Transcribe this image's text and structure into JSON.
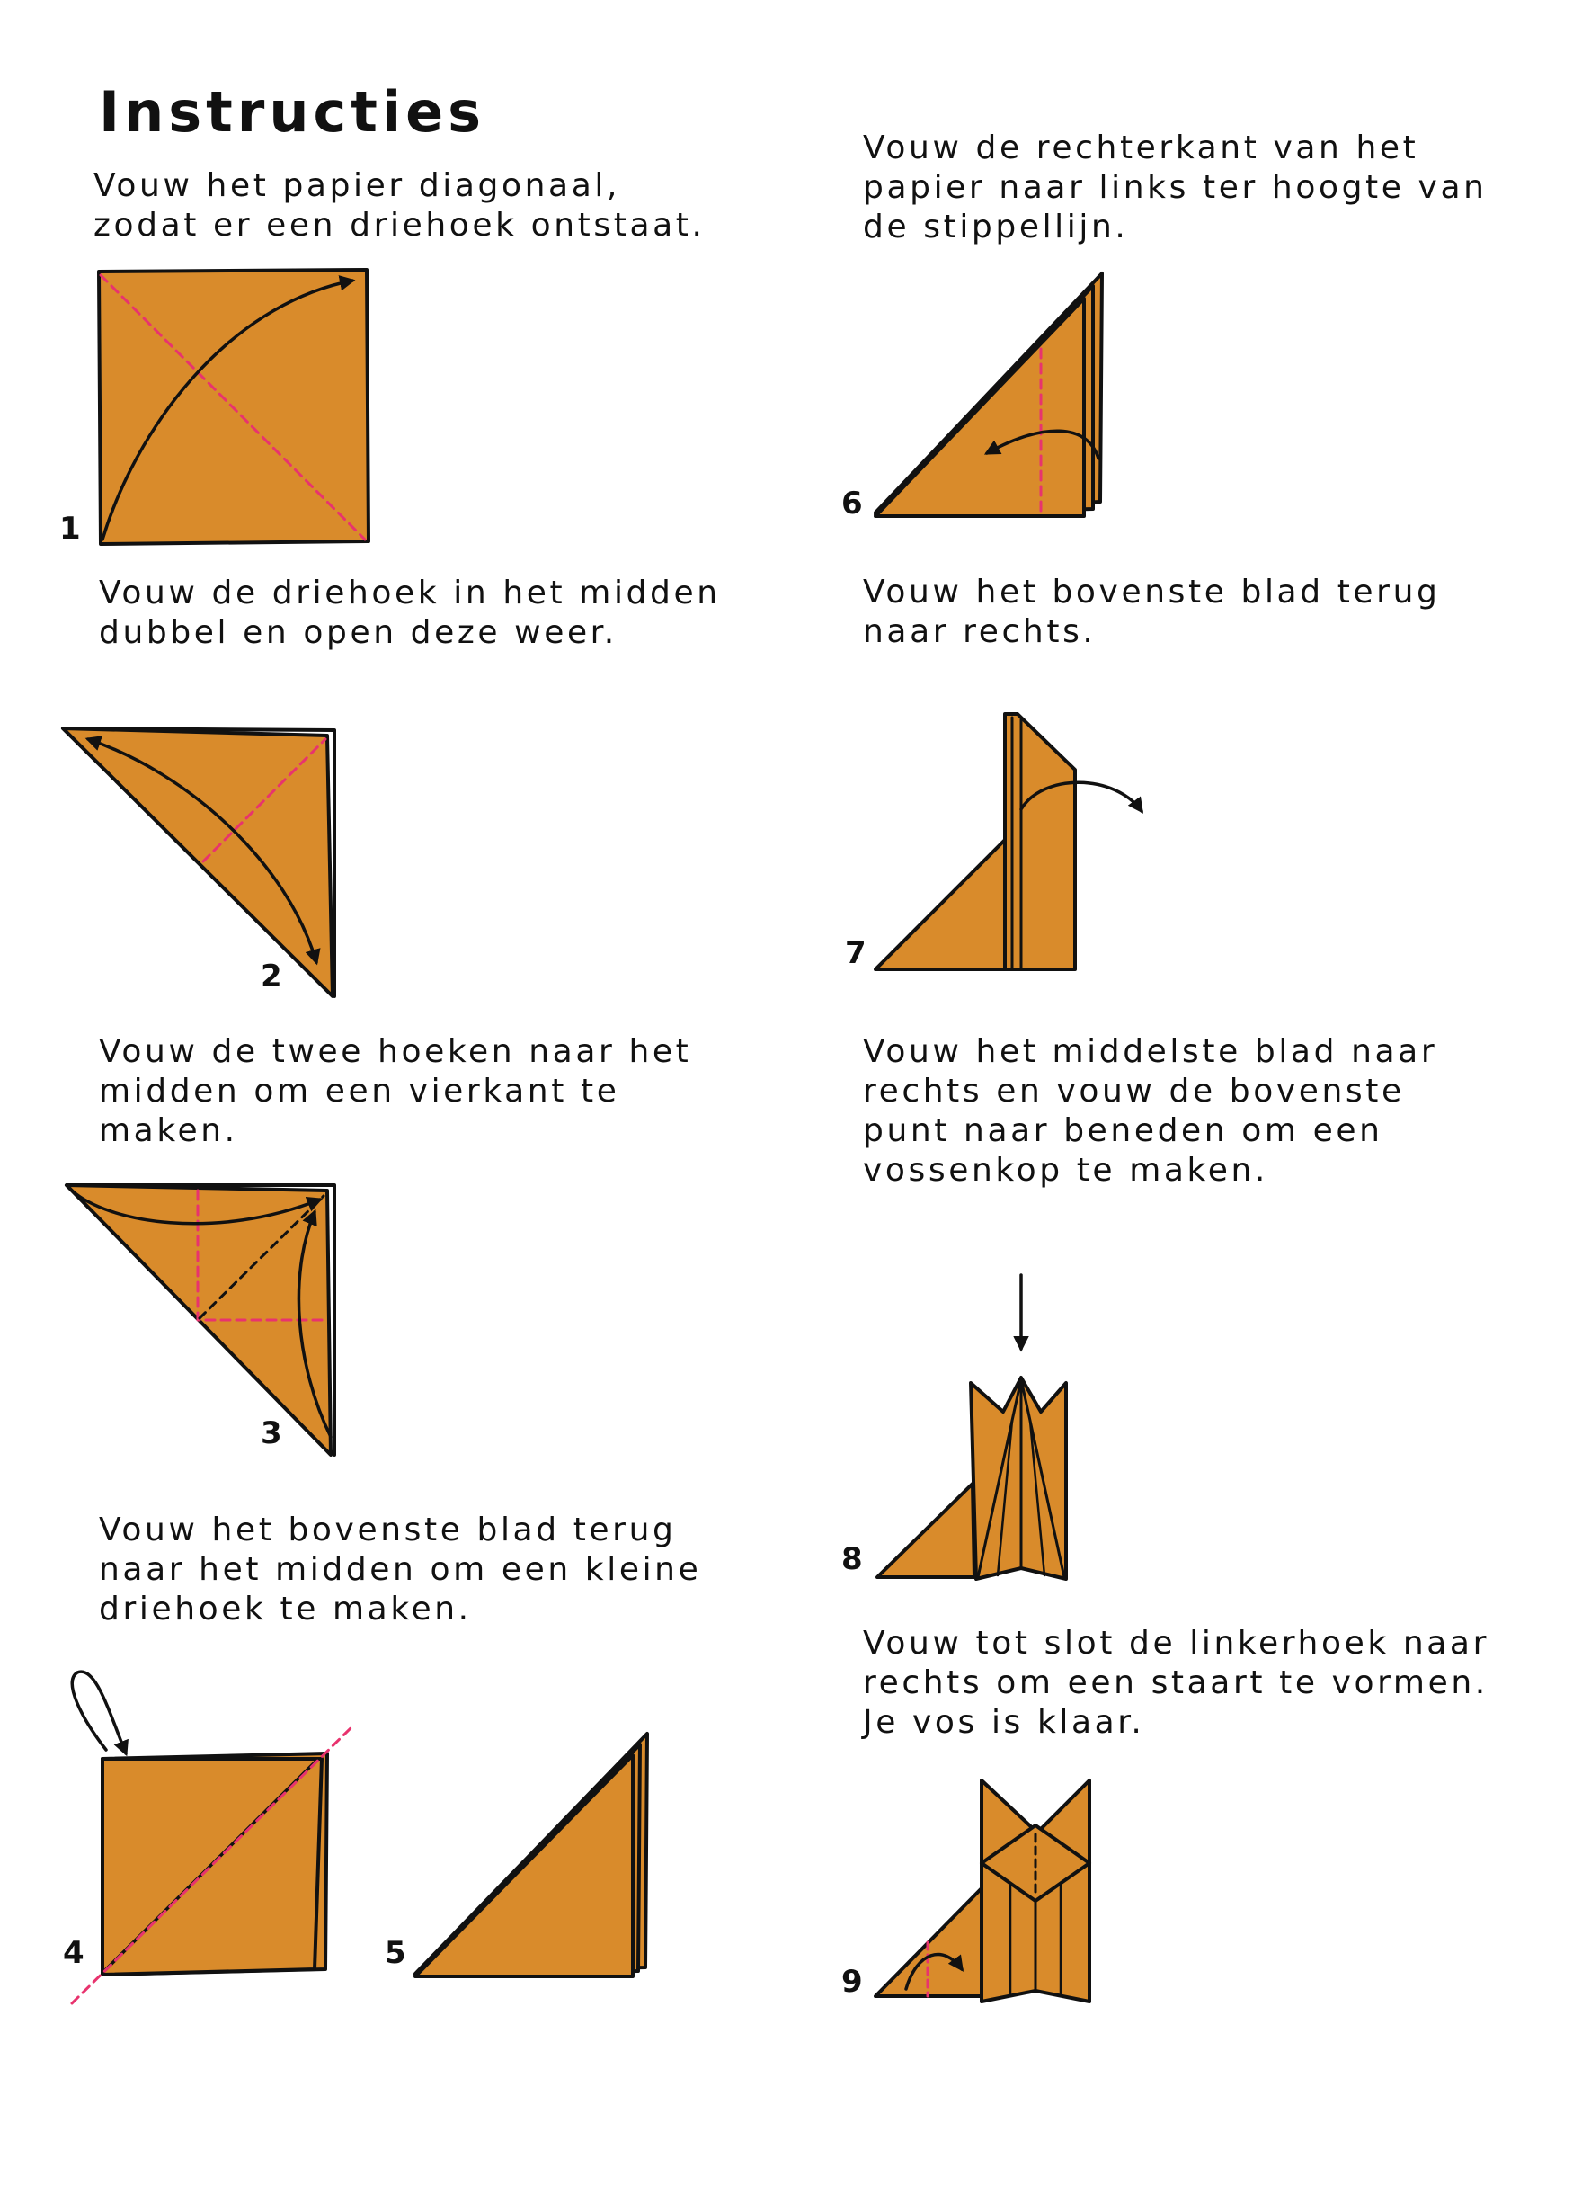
{
  "title": "Instructies",
  "steps": [
    {
      "number": "1",
      "text": "Vouw het papier diagonaal,\nzodat er een driehoek ontstaat."
    },
    {
      "number": "2",
      "text": "Vouw de driehoek in het midden\ndubbel en open deze weer."
    },
    {
      "number": "3",
      "text": "Vouw de twee hoeken naar het\nmidden om een vierkant te\nmaken."
    },
    {
      "number": "4",
      "text": "Vouw het bovenste blad terug\nnaar het midden om een kleine\ndriehoek te maken."
    },
    {
      "number": "5",
      "text": ""
    },
    {
      "number": "6",
      "text": "Vouw de rechterkant van het\npapier naar links ter hoogte van\nde stippellijn."
    },
    {
      "number": "7",
      "text": "Vouw het bovenste blad terug\nnaar rechts."
    },
    {
      "number": "8",
      "text": "Vouw het middelste blad naar\nrechts en vouw de bovenste\npunt naar beneden om een\nvossenkop te maken."
    },
    {
      "number": "9",
      "text": "Vouw tot slot de linkerhoek naar\nrechts om een staart te vormen.\nJe vos is klaar."
    }
  ],
  "colors": {
    "paper": "#D98B2B",
    "outline": "#111111",
    "fold_line": "#E8336E"
  }
}
